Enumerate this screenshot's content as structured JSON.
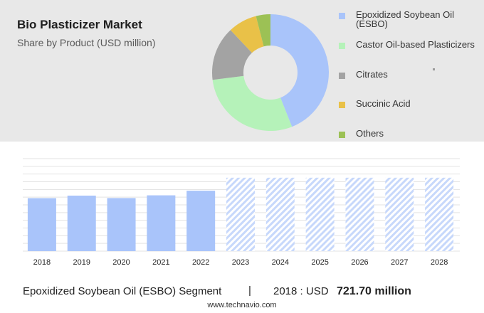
{
  "header": {
    "title": "Bio Plasticizer Market",
    "subtitle": "Share by Product (USD million)"
  },
  "footer": {
    "segment": "Epoxidized Soybean Oil (ESBO) Segment",
    "separator": "|",
    "year_label": "2018 : USD",
    "value_label": "721.70 million",
    "source": "www.technavio.com"
  },
  "chart_data": [
    {
      "type": "pie",
      "title": "Bio Plasticizer Market",
      "subtitle": "Share by Product (USD million)",
      "legend_position": "right",
      "slices": [
        {
          "name": "Epoxidized Soybean Oil (ESBO)",
          "value": 44,
          "color": "#a9c4fa"
        },
        {
          "name": "Castor Oil-based Plasticizers",
          "value": 29,
          "color": "#b5f2b9"
        },
        {
          "name": "Citrates",
          "value": 15,
          "color": "#a3a3a3"
        },
        {
          "name": "Succinic Acid",
          "value": 8,
          "color": "#e9c148"
        },
        {
          "name": "Others",
          "value": 4,
          "color": "#9cc155"
        }
      ]
    },
    {
      "type": "bar",
      "categories": [
        "2018",
        "2019",
        "2020",
        "2021",
        "2022",
        "2023",
        "2024",
        "2025",
        "2026",
        "2027",
        "2028"
      ],
      "values": [
        721.7,
        756,
        723,
        760,
        823,
        1000,
        1000,
        1000,
        1000,
        1000,
        1000
      ],
      "forecast_from": "2023",
      "ylim": [
        0,
        1260
      ],
      "ytick_values": [
        0,
        105,
        210,
        315,
        420,
        525,
        630,
        735,
        840,
        945,
        1050,
        1155,
        1260
      ],
      "actual_color": "#a9c4fa",
      "forecast_color": "#c7d8fb",
      "gridlines": true,
      "y_axis_labels_visible": false
    }
  ]
}
